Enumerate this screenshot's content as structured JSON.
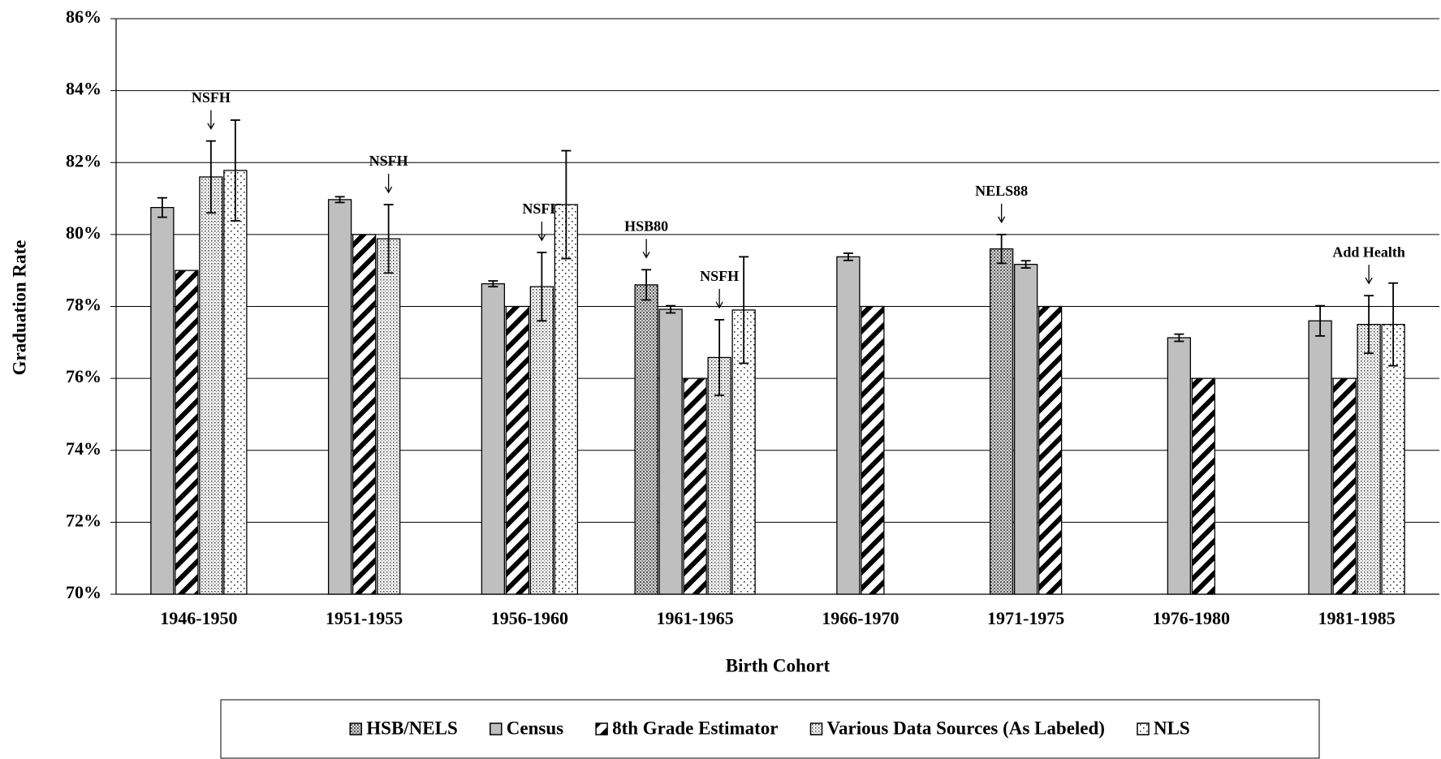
{
  "chart_data": {
    "type": "bar",
    "x_label": "Birth Cohort",
    "y_label": "Graduation Rate",
    "categories": [
      "1946-1950",
      "1951-1955",
      "1956-1960",
      "1961-1965",
      "1966-1970",
      "1971-1975",
      "1976-1980",
      "1981-1985"
    ],
    "ylim": [
      70,
      86
    ],
    "yticks": [
      {
        "value": 70,
        "label": "70%"
      },
      {
        "value": 72,
        "label": "72%"
      },
      {
        "value": 74,
        "label": "74%"
      },
      {
        "value": 76,
        "label": "76%"
      },
      {
        "value": 78,
        "label": "78%"
      },
      {
        "value": 80,
        "label": "80%"
      },
      {
        "value": 82,
        "label": "82%"
      },
      {
        "value": 84,
        "label": "84%"
      },
      {
        "value": 86,
        "label": "86%"
      }
    ],
    "grid": true,
    "legend": "bottom",
    "series": [
      {
        "name": "HSB/NELS",
        "color": "#bfbfbf",
        "pattern": "crosshatch",
        "values": [
          null,
          null,
          null,
          78.6,
          null,
          79.6,
          null,
          null
        ],
        "errors": [
          null,
          null,
          null,
          0.42,
          null,
          0.4,
          null,
          null
        ],
        "annotations": [
          null,
          null,
          null,
          "HSB80",
          null,
          "NELS88",
          null,
          null
        ]
      },
      {
        "name": "Census",
        "color": "#bfbfbf",
        "pattern": "solid",
        "values": [
          80.75,
          80.97,
          78.63,
          77.92,
          79.38,
          79.17,
          77.13,
          77.6
        ],
        "errors": [
          0.27,
          0.08,
          0.08,
          0.1,
          0.1,
          0.1,
          0.1,
          0.42
        ],
        "annotations": [
          null,
          null,
          null,
          null,
          null,
          null,
          null,
          null
        ]
      },
      {
        "name": "8th Grade Estimator",
        "color": "#000000",
        "pattern": "diagonal",
        "values": [
          79,
          80,
          78,
          76,
          78,
          78,
          76,
          76
        ],
        "errors": [
          null,
          null,
          null,
          null,
          null,
          null,
          null,
          null
        ],
        "annotations": [
          null,
          null,
          null,
          null,
          null,
          null,
          null,
          null
        ]
      },
      {
        "name": "Various Data Sources (As Labeled)",
        "color": "#000000",
        "pattern": "dots",
        "values": [
          81.6,
          79.88,
          78.55,
          76.58,
          null,
          null,
          null,
          77.5
        ],
        "errors": [
          1.0,
          0.95,
          0.95,
          1.05,
          null,
          null,
          null,
          0.8
        ],
        "annotations": [
          "NSFH",
          "NSFH",
          "NSFH",
          "NSFH",
          null,
          null,
          null,
          "Add Health"
        ]
      },
      {
        "name": "NLS",
        "color": "#000000",
        "pattern": "sparse-dots",
        "values": [
          81.78,
          null,
          80.83,
          77.9,
          null,
          null,
          null,
          77.5
        ],
        "errors": [
          1.4,
          null,
          1.5,
          1.48,
          null,
          null,
          null,
          1.15
        ],
        "annotations": [
          null,
          null,
          null,
          null,
          null,
          null,
          null,
          null
        ]
      }
    ]
  }
}
